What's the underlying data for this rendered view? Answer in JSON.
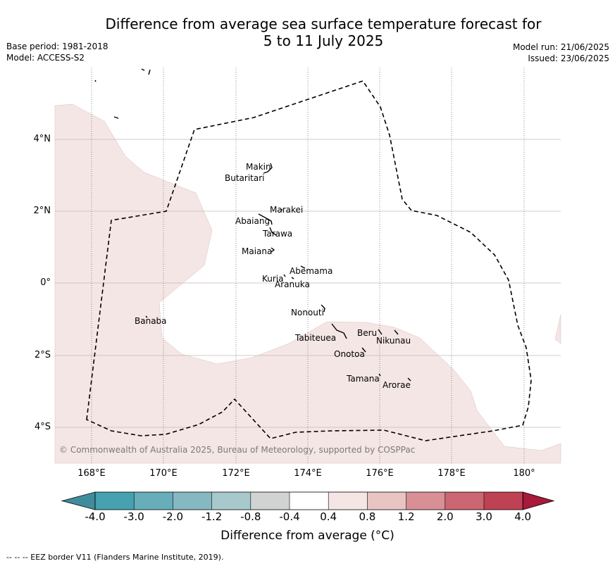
{
  "title_line1": "Difference from average sea surface temperature forecast for",
  "title_line2": "5 to 11 July 2025",
  "base_period": "Base period: 1981-2018",
  "model": "Model: ACCESS-S2",
  "model_run": "Model run: 21/06/2025",
  "issued": "Issued: 23/06/2025",
  "y_ticks": [
    "4°N",
    "2°N",
    "0°",
    "2°S",
    "4°S"
  ],
  "x_ticks": [
    "168°E",
    "170°E",
    "172°E",
    "174°E",
    "176°E",
    "178°E",
    "180°"
  ],
  "places": [
    "Makin",
    "Butaritari",
    "Marakei",
    "Abaiang",
    "Tarawa",
    "Maiana",
    "Abemama",
    "Kuria",
    "Aranuka",
    "Nonouti",
    "Banaba",
    "Beru",
    "Tabiteuea",
    "Nikunau",
    "Onotoa",
    "Tamana",
    "Arorae"
  ],
  "copyright": "© Commonwealth of Australia 2025, Bureau of Meteorology, supported by COSPPac",
  "colorbar": {
    "ticks": [
      "-4.0",
      "-3.0",
      "-2.0",
      "-1.2",
      "-0.8",
      "-0.4",
      "0.4",
      "0.8",
      "1.2",
      "2.0",
      "3.0",
      "4.0"
    ],
    "colors": [
      "#3f8d9c",
      "#46a1b1",
      "#67adba",
      "#86b8c2",
      "#a7c9cc",
      "#d1d3d3",
      "#ffffff",
      "#f4e6e4",
      "#e8c5c2",
      "#d88f96",
      "#cb6672",
      "#be4154",
      "#a8193a"
    ],
    "label": "Difference from average (°C)"
  },
  "eez_note": "--  --  -- EEZ border V11 (Flanders Marine Institute, 2019)."
}
